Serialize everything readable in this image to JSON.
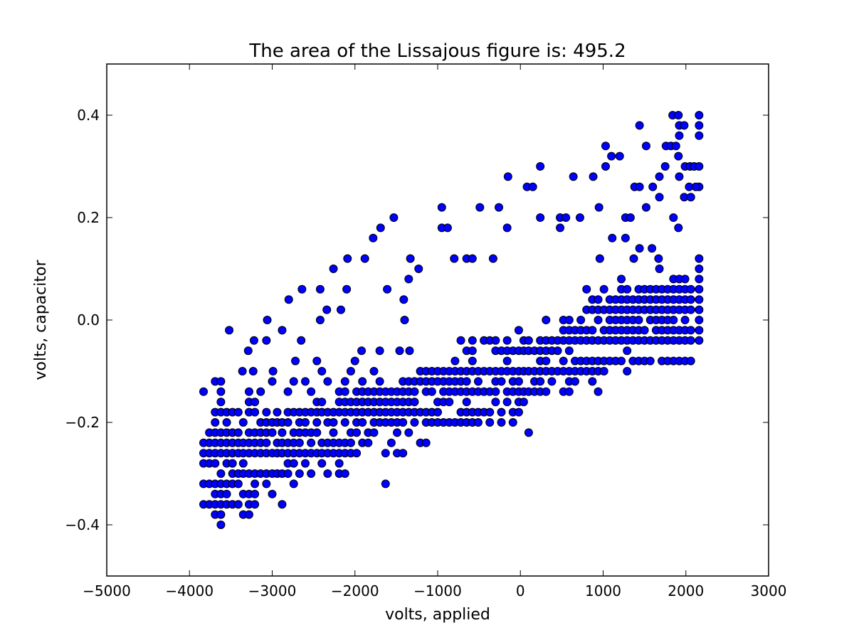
{
  "chart_data": {
    "type": "scatter",
    "title": "The area of the Lissajous figure is: 495.2",
    "xlabel": "volts, applied",
    "ylabel": "volts, capacitor",
    "color": "#0000ff",
    "edgecolor": "#000000",
    "xlim": [
      -5000,
      3000
    ],
    "ylim": [
      -0.5,
      0.5
    ],
    "xticks": [
      {
        "value": -5000,
        "label": "−5000"
      },
      {
        "value": -4000,
        "label": "−4000"
      },
      {
        "value": -3000,
        "label": "−3000"
      },
      {
        "value": -2000,
        "label": "−2000"
      },
      {
        "value": -1000,
        "label": "−1000"
      },
      0,
      1000,
      2000,
      3000
    ],
    "yticks": [
      {
        "value": -0.4,
        "label": "−0.4"
      },
      {
        "value": -0.2,
        "label": "−0.2"
      },
      {
        "value": 0,
        "label": "0.0"
      },
      0.2,
      0.4
    ],
    "grid": false,
    "x": [
      -3830,
      -3520,
      -3290,
      -3220,
      -3360,
      -3230,
      -3060,
      -3070,
      -2990,
      -2880,
      -2800,
      -2640,
      -2650,
      -2720,
      -2420,
      -2420,
      -2340,
      -2260,
      -2170,
      -2100,
      -2000,
      -1920,
      -2090,
      -1880,
      -1780,
      -1690,
      -1530,
      -1610,
      -1700,
      -1330,
      -1350,
      -1230,
      -1410,
      -1400,
      -1340,
      -1460,
      -950,
      -950,
      -880,
      -800,
      -650,
      -580,
      -490,
      -330,
      -260,
      -150,
      -160,
      80,
      150,
      240,
      240,
      480,
      480,
      550,
      640,
      720,
      880,
      950,
      1030,
      1030,
      1100,
      1200,
      1270,
      1330,
      1270,
      1110,
      1440,
      1520,
      1380,
      1440,
      1520,
      1600,
      1680,
      1750,
      1760,
      1820,
      1840,
      1910,
      1880,
      1920,
      1980,
      1920,
      1910,
      1920,
      1990,
      1980,
      2050,
      2040,
      2100,
      2060,
      2160,
      2160,
      2160,
      2160,
      2160,
      2120,
      1850,
      1910,
      1680,
      1590,
      1440,
      1370,
      960,
      1220,
      1670,
      1680,
      -3830,
      -3830,
      -3830,
      -3830,
      -3830,
      -3760,
      -3760,
      -3760,
      -3760,
      -3760,
      -3760,
      -3690,
      -3690,
      -3690,
      -3690,
      -3690,
      -3690,
      -3690,
      -3690,
      -3690,
      -3690,
      -3690,
      -3620,
      -3620,
      -3620,
      -3620,
      -3620,
      -3620,
      -3620,
      -3620,
      -3620,
      -3620,
      -3620,
      -3620,
      -3620,
      -3550,
      -3550,
      -3550,
      -3550,
      -3550,
      -3550,
      -3550,
      -3550,
      -3550,
      -3480,
      -3480,
      -3480,
      -3480,
      -3480,
      -3480,
      -3480,
      -3480,
      -3410,
      -3410,
      -3410,
      -3410,
      -3410,
      -3410,
      -3410,
      -3350,
      -3350,
      -3350,
      -3350,
      -3350,
      -3350,
      -3350,
      -3280,
      -3280,
      -3280,
      -3280,
      -3280,
      -3280,
      -3280,
      -3280,
      -3280,
      -3280,
      -3210,
      -3210,
      -3210,
      -3210,
      -3210,
      -3210,
      -3210,
      -3210,
      -3210,
      -3140,
      -3140,
      -3140,
      -3140,
      -3140,
      -3140,
      -3070,
      -3070,
      -3070,
      -3070,
      -3070,
      -3070,
      -3070,
      -3000,
      -3000,
      -3000,
      -3000,
      -3000,
      -3000,
      -2940,
      -2940,
      -2940,
      -2940,
      -2940,
      -2880,
      -2880,
      -2880,
      -2880,
      -2880,
      -2880,
      -2810,
      -2810,
      -2810,
      -2810,
      -2810,
      -2810,
      -2810,
      -2740,
      -2740,
      -2740,
      -2740,
      -2740,
      -2740,
      -2740,
      -2670,
      -2670,
      -2670,
      -2670,
      -2670,
      -2670,
      -2600,
      -2600,
      -2600,
      -2600,
      -2600,
      -2600,
      -2530,
      -2530,
      -2530,
      -2530,
      -2530,
      -2530,
      -2460,
      -2460,
      -2460,
      -2460,
      -2460,
      -2460,
      -2400,
      -2400,
      -2400,
      -2400,
      -2400,
      -2400,
      -2330,
      -2330,
      -2330,
      -2330,
      -2330,
      -2330,
      -2260,
      -2260,
      -2260,
      -2260,
      -2260,
      -2190,
      -2190,
      -2190,
      -2190,
      -2190,
      -2190,
      -2190,
      -2120,
      -2120,
      -2120,
      -2120,
      -2120,
      -2120,
      -2120,
      -2120,
      -2050,
      -2050,
      -2050,
      -2050,
      -2050,
      -2050,
      -1980,
      -1980,
      -1980,
      -1980,
      -1980,
      -1980,
      -1910,
      -1910,
      -1910,
      -1910,
      -1910,
      -1910,
      -1840,
      -1840,
      -1840,
      -1840,
      -1840,
      -1770,
      -1770,
      -1770,
      -1770,
      -1770,
      -1770,
      -1700,
      -1700,
      -1700,
      -1700,
      -1700,
      -1630,
      -1630,
      -1630,
      -1630,
      -1630,
      -1630,
      -1560,
      -1560,
      -1560,
      -1560,
      -1560,
      -1490,
      -1490,
      -1490,
      -1490,
      -1490,
      -1490,
      -1420,
      -1420,
      -1420,
      -1420,
      -1420,
      -1420,
      -1350,
      -1350,
      -1350,
      -1350,
      -1350,
      -1280,
      -1280,
      -1280,
      -1280,
      -1280,
      -1210,
      -1210,
      -1210,
      -1210,
      -1140,
      -1140,
      -1140,
      -1140,
      -1140,
      -1140,
      -1070,
      -1070,
      -1070,
      -1070,
      -1070,
      -1000,
      -1000,
      -1000,
      -1000,
      -1000,
      -930,
      -930,
      -930,
      -930,
      -930,
      -860,
      -860,
      -860,
      -860,
      -860,
      -790,
      -790,
      -790,
      -790,
      -790,
      -720,
      -720,
      -720,
      -720,
      -720,
      -720,
      -650,
      -650,
      -650,
      -650,
      -650,
      -650,
      -650,
      -580,
      -580,
      -580,
      -580,
      -580,
      -580,
      -580,
      -510,
      -510,
      -510,
      -510,
      -510,
      -440,
      -440,
      -440,
      -440,
      -370,
      -370,
      -370,
      -370,
      -370,
      -300,
      -300,
      -300,
      -300,
      -300,
      -300,
      -230,
      -230,
      -230,
      -230,
      -230,
      -160,
      -160,
      -160,
      -160,
      -160,
      -160,
      -90,
      -90,
      -90,
      -90,
      -90,
      -90,
      -20,
      -20,
      -20,
      -20,
      -20,
      -20,
      -20,
      40,
      40,
      40,
      40,
      40,
      100,
      100,
      100,
      100,
      100,
      170,
      170,
      170,
      170,
      240,
      240,
      240,
      240,
      240,
      240,
      310,
      310,
      310,
      310,
      310,
      310,
      380,
      380,
      380,
      380,
      450,
      450,
      450,
      520,
      520,
      520,
      520,
      520,
      520,
      590,
      590,
      590,
      590,
      590,
      590,
      590,
      660,
      660,
      660,
      660,
      660,
      730,
      730,
      730,
      730,
      730,
      800,
      800,
      800,
      800,
      800,
      800,
      870,
      870,
      870,
      870,
      870,
      870,
      870,
      940,
      940,
      940,
      940,
      940,
      940,
      940,
      1010,
      1010,
      1010,
      1010,
      1010,
      1010,
      1080,
      1080,
      1080,
      1080,
      1080,
      1080,
      1150,
      1150,
      1150,
      1150,
      1150,
      1150,
      1220,
      1220,
      1220,
      1220,
      1220,
      1220,
      1220,
      1290,
      1290,
      1290,
      1290,
      1290,
      1290,
      1290,
      1290,
      1360,
      1360,
      1360,
      1360,
      1360,
      1360,
      1430,
      1430,
      1430,
      1430,
      1430,
      1430,
      1430,
      1500,
      1500,
      1500,
      1500,
      1500,
      1500,
      1570,
      1570,
      1570,
      1570,
      1570,
      1570,
      1640,
      1640,
      1640,
      1640,
      1640,
      1640,
      1710,
      1710,
      1710,
      1710,
      1710,
      1710,
      1710,
      1780,
      1780,
      1780,
      1780,
      1780,
      1780,
      1780,
      1850,
      1850,
      1850,
      1850,
      1850,
      1850,
      1850,
      1850,
      1920,
      1920,
      1920,
      1920,
      1920,
      1920,
      1920,
      1990,
      1990,
      1990,
      1990,
      1990,
      1990,
      1990,
      1990,
      2060,
      2060,
      2060,
      2060,
      2060,
      2060,
      2160,
      2160,
      2160,
      2160,
      2160,
      2160,
      2160,
      2160,
      2160
    ],
    "values": [
      -0.14,
      -0.02,
      -0.06,
      -0.04,
      -0.1,
      -0.1,
      0.0,
      -0.04,
      -0.1,
      -0.02,
      0.04,
      0.06,
      -0.04,
      -0.08,
      0.06,
      0.0,
      0.02,
      0.1,
      0.02,
      0.06,
      -0.08,
      -0.06,
      0.12,
      0.12,
      0.16,
      0.18,
      0.2,
      0.06,
      -0.06,
      0.12,
      0.08,
      0.1,
      0.04,
      0.0,
      -0.06,
      -0.06,
      0.22,
      0.18,
      0.18,
      0.12,
      0.12,
      0.12,
      0.22,
      0.12,
      0.22,
      0.28,
      0.18,
      0.26,
      0.26,
      0.3,
      0.2,
      0.2,
      0.18,
      0.2,
      0.28,
      0.2,
      0.28,
      0.22,
      0.34,
      0.3,
      0.32,
      0.32,
      0.2,
      0.2,
      0.16,
      0.16,
      0.38,
      0.34,
      0.26,
      0.26,
      0.22,
      0.26,
      0.28,
      0.3,
      0.34,
      0.34,
      0.4,
      0.4,
      0.34,
      0.38,
      0.38,
      0.36,
      0.32,
      0.28,
      0.3,
      0.24,
      0.3,
      0.26,
      0.3,
      0.24,
      0.4,
      0.38,
      0.36,
      0.3,
      0.26,
      0.26,
      0.2,
      0.18,
      0.24,
      0.14,
      0.14,
      0.12,
      0.12,
      0.08,
      0.12,
      0.1,
      -0.24,
      -0.26,
      -0.28,
      -0.32,
      -0.36,
      -0.22,
      -0.24,
      -0.26,
      -0.28,
      -0.32,
      -0.36,
      -0.12,
      -0.18,
      -0.2,
      -0.22,
      -0.24,
      -0.26,
      -0.28,
      -0.32,
      -0.34,
      -0.36,
      -0.38,
      -0.12,
      -0.14,
      -0.16,
      -0.18,
      -0.22,
      -0.24,
      -0.26,
      -0.3,
      -0.32,
      -0.34,
      -0.36,
      -0.38,
      -0.4,
      -0.18,
      -0.2,
      -0.22,
      -0.24,
      -0.26,
      -0.28,
      -0.32,
      -0.34,
      -0.36,
      -0.18,
      -0.22,
      -0.24,
      -0.26,
      -0.28,
      -0.3,
      -0.32,
      -0.36,
      -0.18,
      -0.22,
      -0.24,
      -0.26,
      -0.3,
      -0.32,
      -0.36,
      -0.2,
      -0.24,
      -0.26,
      -0.28,
      -0.3,
      -0.34,
      -0.38,
      -0.14,
      -0.16,
      -0.18,
      -0.22,
      -0.24,
      -0.26,
      -0.3,
      -0.34,
      -0.36,
      -0.38,
      -0.16,
      -0.18,
      -0.22,
      -0.24,
      -0.26,
      -0.3,
      -0.32,
      -0.34,
      -0.36,
      -0.14,
      -0.2,
      -0.22,
      -0.24,
      -0.26,
      -0.3,
      -0.18,
      -0.2,
      -0.22,
      -0.24,
      -0.26,
      -0.3,
      -0.32,
      -0.12,
      -0.2,
      -0.22,
      -0.26,
      -0.3,
      -0.34,
      -0.18,
      -0.2,
      -0.24,
      -0.26,
      -0.3,
      -0.2,
      -0.22,
      -0.24,
      -0.26,
      -0.3,
      -0.36,
      -0.14,
      -0.18,
      -0.2,
      -0.24,
      -0.26,
      -0.28,
      -0.3,
      -0.12,
      -0.18,
      -0.22,
      -0.24,
      -0.26,
      -0.28,
      -0.32,
      -0.18,
      -0.2,
      -0.22,
      -0.24,
      -0.26,
      -0.3,
      -0.12,
      -0.18,
      -0.2,
      -0.22,
      -0.26,
      -0.28,
      -0.14,
      -0.18,
      -0.22,
      -0.24,
      -0.26,
      -0.3,
      -0.08,
      -0.16,
      -0.18,
      -0.2,
      -0.22,
      -0.26,
      -0.1,
      -0.16,
      -0.18,
      -0.24,
      -0.26,
      -0.28,
      -0.12,
      -0.18,
      -0.2,
      -0.24,
      -0.26,
      -0.3,
      -0.18,
      -0.2,
      -0.22,
      -0.24,
      -0.26,
      -0.14,
      -0.16,
      -0.18,
      -0.24,
      -0.26,
      -0.28,
      -0.3,
      -0.12,
      -0.14,
      -0.16,
      -0.18,
      -0.2,
      -0.24,
      -0.26,
      -0.3,
      -0.1,
      -0.16,
      -0.18,
      -0.22,
      -0.24,
      -0.26,
      -0.14,
      -0.16,
      -0.18,
      -0.2,
      -0.22,
      -0.26,
      -0.12,
      -0.14,
      -0.16,
      -0.18,
      -0.2,
      -0.24,
      -0.14,
      -0.16,
      -0.18,
      -0.22,
      -0.24,
      -0.1,
      -0.14,
      -0.16,
      -0.18,
      -0.2,
      -0.22,
      -0.12,
      -0.14,
      -0.16,
      -0.18,
      -0.2,
      -0.14,
      -0.16,
      -0.18,
      -0.2,
      -0.26,
      -0.32,
      -0.14,
      -0.16,
      -0.18,
      -0.2,
      -0.24,
      -0.14,
      -0.16,
      -0.18,
      -0.2,
      -0.22,
      -0.26,
      -0.12,
      -0.14,
      -0.16,
      -0.18,
      -0.2,
      -0.26,
      -0.12,
      -0.14,
      -0.16,
      -0.18,
      -0.22,
      -0.12,
      -0.14,
      -0.16,
      -0.18,
      -0.2,
      -0.1,
      -0.12,
      -0.18,
      -0.24,
      -0.1,
      -0.12,
      -0.14,
      -0.18,
      -0.2,
      -0.24,
      -0.1,
      -0.12,
      -0.14,
      -0.18,
      -0.2,
      -0.1,
      -0.12,
      -0.16,
      -0.18,
      -0.2,
      -0.1,
      -0.12,
      -0.14,
      -0.16,
      -0.2,
      -0.1,
      -0.12,
      -0.14,
      -0.16,
      -0.2,
      -0.08,
      -0.1,
      -0.12,
      -0.14,
      -0.2,
      -0.04,
      -0.1,
      -0.12,
      -0.14,
      -0.18,
      -0.2,
      -0.06,
      -0.1,
      -0.12,
      -0.14,
      -0.16,
      -0.18,
      -0.2,
      -0.04,
      -0.06,
      -0.08,
      -0.1,
      -0.14,
      -0.18,
      -0.2,
      -0.1,
      -0.12,
      -0.14,
      -0.18,
      -0.2,
      -0.04,
      -0.1,
      -0.14,
      -0.18,
      -0.04,
      -0.1,
      -0.14,
      -0.18,
      -0.2,
      -0.04,
      -0.06,
      -0.1,
      -0.12,
      -0.14,
      -0.16,
      -0.06,
      -0.1,
      -0.12,
      -0.18,
      -0.2,
      -0.04,
      -0.06,
      -0.08,
      -0.1,
      -0.14,
      -0.16,
      -0.06,
      -0.1,
      -0.12,
      -0.14,
      -0.18,
      -0.2,
      -0.02,
      -0.06,
      -0.1,
      -0.12,
      -0.14,
      -0.16,
      -0.18,
      -0.04,
      -0.06,
      -0.1,
      -0.14,
      -0.16,
      -0.04,
      -0.06,
      -0.1,
      -0.14,
      -0.22,
      -0.06,
      -0.1,
      -0.12,
      -0.14,
      -0.04,
      -0.06,
      -0.08,
      -0.1,
      -0.12,
      -0.14,
      0.0,
      -0.04,
      -0.06,
      -0.08,
      -0.1,
      -0.14,
      -0.04,
      -0.06,
      -0.1,
      -0.12,
      -0.04,
      -0.06,
      -0.1,
      0.0,
      -0.02,
      -0.04,
      -0.08,
      -0.1,
      -0.14,
      0.0,
      -0.02,
      -0.04,
      -0.06,
      -0.1,
      -0.12,
      -0.14,
      -0.02,
      -0.04,
      -0.08,
      -0.1,
      -0.12,
      0.0,
      -0.02,
      -0.04,
      -0.08,
      -0.1,
      0.02,
      0.06,
      -0.02,
      -0.04,
      -0.08,
      -0.1,
      0.02,
      0.04,
      -0.02,
      -0.04,
      -0.08,
      -0.1,
      -0.12,
      0.02,
      0.04,
      0.0,
      -0.04,
      -0.08,
      -0.1,
      -0.14,
      0.06,
      0.02,
      -0.02,
      -0.04,
      -0.08,
      -0.1,
      0.04,
      0.02,
      0.0,
      -0.02,
      -0.04,
      -0.08,
      0.04,
      0.02,
      0.0,
      -0.02,
      -0.04,
      -0.08,
      0.06,
      0.04,
      0.02,
      0.0,
      -0.02,
      -0.04,
      -0.08,
      0.06,
      0.04,
      0.02,
      0.0,
      -0.02,
      -0.04,
      -0.06,
      -0.1,
      0.04,
      0.02,
      0.0,
      -0.02,
      -0.04,
      -0.08,
      0.06,
      0.04,
      0.02,
      0.0,
      -0.02,
      -0.04,
      -0.08,
      0.06,
      0.04,
      0.02,
      -0.02,
      -0.04,
      -0.08,
      0.06,
      0.04,
      0.02,
      0.0,
      -0.04,
      -0.08,
      0.06,
      0.04,
      0.02,
      0.0,
      -0.02,
      -0.04,
      0.06,
      0.04,
      0.02,
      0.0,
      -0.02,
      -0.04,
      -0.08,
      0.06,
      0.04,
      0.02,
      0.0,
      -0.02,
      -0.04,
      -0.08,
      0.08,
      0.06,
      0.04,
      0.02,
      0.0,
      -0.02,
      -0.04,
      -0.08,
      0.08,
      0.06,
      0.04,
      0.02,
      -0.02,
      -0.04,
      -0.08,
      0.08,
      0.06,
      0.04,
      0.02,
      0.0,
      -0.02,
      -0.04,
      -0.08,
      0.06,
      0.04,
      0.02,
      -0.02,
      -0.04,
      -0.08,
      0.12,
      0.1,
      0.08,
      0.06,
      0.04,
      0.02,
      0.0,
      -0.02,
      -0.04
    ]
  }
}
